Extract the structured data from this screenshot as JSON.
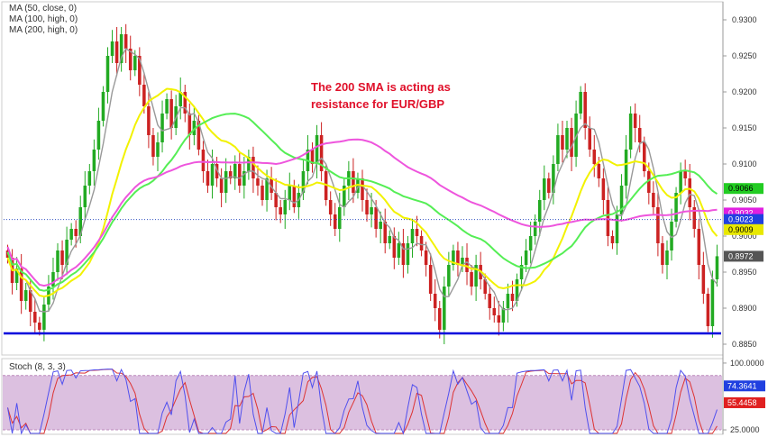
{
  "chart_data": [
    {
      "type": "candlestick",
      "indicator_labels": [
        "MA (50, close, 0)",
        "MA (100, high, 0)",
        "MA (200, high, 0)"
      ],
      "annotation": [
        "The 200 SMA is acting as",
        "resistance for EUR/GBP"
      ],
      "y_ticks": [
        0.93,
        0.925,
        0.92,
        0.915,
        0.91,
        0.905,
        0.9,
        0.895,
        0.89,
        0.885
      ],
      "y_tick_labels": [
        "0.9300",
        "0.9250",
        "0.9200",
        "0.9150",
        "0.9100",
        "0.9050",
        "0.9000",
        "0.8950",
        "0.8900",
        "0.8850"
      ],
      "ylim": [
        0.8835,
        0.9325
      ],
      "price_tags": [
        {
          "label": "0.9066",
          "value": 0.9066,
          "color": "#22cc22"
        },
        {
          "label": "0.9032",
          "value": 0.9032,
          "color": "#e020e0"
        },
        {
          "label": "0.9023",
          "value": 0.9023,
          "color": "#2040e0"
        },
        {
          "label": "0.9009",
          "value": 0.9009,
          "color": "#e8e800"
        },
        {
          "label": "0.8972",
          "value": 0.8972,
          "color": "#555555"
        }
      ],
      "support_level": 0.8865,
      "current_price": 0.9023,
      "grid": false,
      "colors": {
        "up": "#22aa22",
        "down": "#cc2222",
        "ma_fast": "#999999",
        "ma_50": "#f2f200",
        "ma_100": "#55ee55",
        "ma_200": "#ee55dd",
        "support": "#0000dd"
      },
      "candles": [
        {
          "close": 0.897
        },
        {
          "close": 0.8935
        },
        {
          "close": 0.8955
        },
        {
          "close": 0.891
        },
        {
          "close": 0.8925
        },
        {
          "close": 0.8895
        },
        {
          "close": 0.888
        },
        {
          "close": 0.887
        },
        {
          "close": 0.8905
        },
        {
          "close": 0.893
        },
        {
          "close": 0.895
        },
        {
          "close": 0.898
        },
        {
          "close": 0.896
        },
        {
          "close": 0.8995
        },
        {
          "close": 0.901
        },
        {
          "close": 0.9
        },
        {
          "close": 0.904
        },
        {
          "close": 0.907
        },
        {
          "close": 0.909
        },
        {
          "close": 0.912
        },
        {
          "close": 0.916
        },
        {
          "close": 0.92
        },
        {
          "close": 0.925
        },
        {
          "close": 0.927
        },
        {
          "close": 0.924
        },
        {
          "close": 0.928
        },
        {
          "close": 0.926
        },
        {
          "close": 0.923
        },
        {
          "close": 0.925
        },
        {
          "close": 0.921
        },
        {
          "close": 0.918
        },
        {
          "close": 0.914
        },
        {
          "close": 0.911
        },
        {
          "close": 0.913
        },
        {
          "close": 0.917
        },
        {
          "close": 0.919
        },
        {
          "close": 0.915
        },
        {
          "close": 0.918
        },
        {
          "close": 0.92
        },
        {
          "close": 0.917
        },
        {
          "close": 0.914
        },
        {
          "close": 0.916
        },
        {
          "close": 0.912
        },
        {
          "close": 0.909
        },
        {
          "close": 0.907
        },
        {
          "close": 0.91
        },
        {
          "close": 0.908
        },
        {
          "close": 0.906
        },
        {
          "close": 0.909
        },
        {
          "close": 0.908
        },
        {
          "close": 0.91
        },
        {
          "close": 0.907
        },
        {
          "close": 0.909
        },
        {
          "close": 0.911
        },
        {
          "close": 0.908
        },
        {
          "close": 0.907
        },
        {
          "close": 0.905
        },
        {
          "close": 0.908
        },
        {
          "close": 0.906
        },
        {
          "close": 0.904
        },
        {
          "close": 0.903
        },
        {
          "close": 0.905
        },
        {
          "close": 0.907
        },
        {
          "close": 0.904
        },
        {
          "close": 0.906
        },
        {
          "close": 0.909
        },
        {
          "close": 0.912
        },
        {
          "close": 0.91
        },
        {
          "close": 0.914
        },
        {
          "close": 0.909
        },
        {
          "close": 0.905
        },
        {
          "close": 0.903
        },
        {
          "close": 0.901
        },
        {
          "close": 0.904
        },
        {
          "close": 0.907
        },
        {
          "close": 0.909
        },
        {
          "close": 0.906
        },
        {
          "close": 0.908
        },
        {
          "close": 0.905
        },
        {
          "close": 0.903
        },
        {
          "close": 0.904
        },
        {
          "close": 0.901
        },
        {
          "close": 0.902
        },
        {
          "close": 0.899
        },
        {
          "close": 0.9
        },
        {
          "close": 0.897
        },
        {
          "close": 0.899
        },
        {
          "close": 0.896
        },
        {
          "close": 0.899
        },
        {
          "close": 0.901
        },
        {
          "close": 0.9
        },
        {
          "close": 0.898
        },
        {
          "close": 0.896
        },
        {
          "close": 0.892
        },
        {
          "close": 0.89
        },
        {
          "close": 0.887
        },
        {
          "close": 0.893
        },
        {
          "close": 0.896
        },
        {
          "close": 0.898
        },
        {
          "close": 0.896
        },
        {
          "close": 0.897
        },
        {
          "close": 0.895
        },
        {
          "close": 0.893
        },
        {
          "close": 0.896
        },
        {
          "close": 0.894
        },
        {
          "close": 0.892
        },
        {
          "close": 0.89
        },
        {
          "close": 0.889
        },
        {
          "close": 0.888
        },
        {
          "close": 0.89
        },
        {
          "close": 0.892
        },
        {
          "close": 0.891
        },
        {
          "close": 0.894
        },
        {
          "close": 0.896
        },
        {
          "close": 0.898
        },
        {
          "close": 0.9
        },
        {
          "close": 0.902
        },
        {
          "close": 0.905
        },
        {
          "close": 0.908
        },
        {
          "close": 0.906
        },
        {
          "close": 0.91
        },
        {
          "close": 0.914
        },
        {
          "close": 0.912
        },
        {
          "close": 0.915
        },
        {
          "close": 0.911
        },
        {
          "close": 0.917
        },
        {
          "close": 0.92
        },
        {
          "close": 0.915
        },
        {
          "close": 0.912
        },
        {
          "close": 0.91
        },
        {
          "close": 0.908
        },
        {
          "close": 0.905
        },
        {
          "close": 0.9
        },
        {
          "close": 0.899
        },
        {
          "close": 0.903
        },
        {
          "close": 0.907
        },
        {
          "close": 0.912
        },
        {
          "close": 0.917
        },
        {
          "close": 0.915
        },
        {
          "close": 0.913
        },
        {
          "close": 0.909
        },
        {
          "close": 0.906
        },
        {
          "close": 0.904
        },
        {
          "close": 0.899
        },
        {
          "close": 0.896
        },
        {
          "close": 0.898
        },
        {
          "close": 0.902
        },
        {
          "close": 0.906
        },
        {
          "close": 0.909
        },
        {
          "close": 0.908
        },
        {
          "close": 0.904
        },
        {
          "close": 0.901
        },
        {
          "close": 0.896
        },
        {
          "close": 0.892
        },
        {
          "close": 0.8875
        },
        {
          "close": 0.894
        },
        {
          "close": 0.8972
        }
      ]
    },
    {
      "type": "line",
      "title": "Stoch (8, 3, 3)",
      "y_tick_labels": [
        "100.0000",
        "25.0000"
      ],
      "y_ticks": [
        100,
        25
      ],
      "ylim": [
        20,
        105
      ],
      "overbought": 80,
      "oversold": 20,
      "tags": [
        {
          "label": "74.3641",
          "value": 74.3641,
          "color": "#2040e0"
        },
        {
          "label": "55.4458",
          "value": 55.4458,
          "color": "#e02020"
        }
      ],
      "colors": {
        "k": "#5050ee",
        "d": "#dd3333",
        "band": "#dcc0e0"
      }
    }
  ]
}
